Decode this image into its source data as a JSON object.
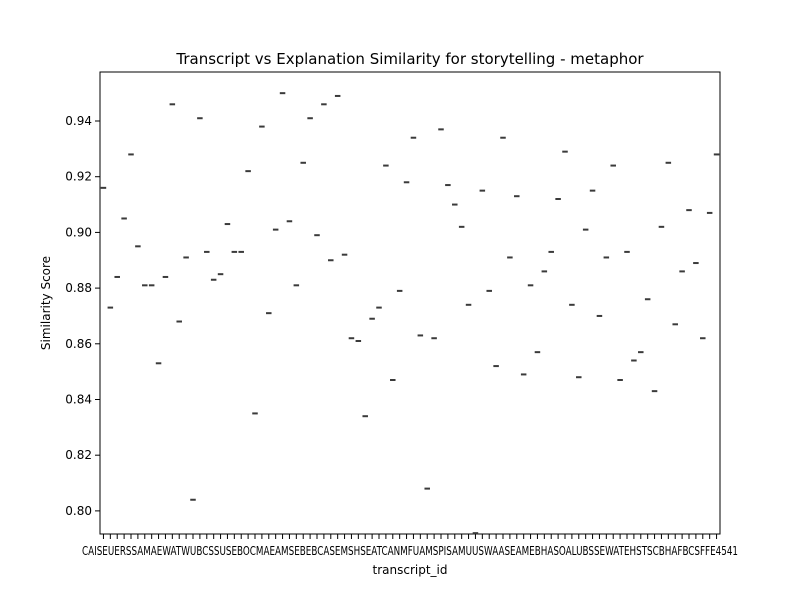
{
  "chart_data": {
    "type": "box",
    "title": "Transcript vs Explanation Similarity for storytelling - metaphor",
    "xlabel": "transcript_id",
    "ylabel": "Similarity Score",
    "ylim": [
      0.7917,
      0.9576
    ],
    "yticks": [
      0.8,
      0.82,
      0.84,
      0.86,
      0.88,
      0.9,
      0.92,
      0.94
    ],
    "xtick_text_visible": "CAISEUERSSAMAEWATWUBCSSUSEBOCMAEAMSEBEBCASEMSHSEATCANMFUAMSPISAMUUSWAASEAMEBHASOALUBSSEWATEHSTSCBHAFBCSFFE4541",
    "grid": false,
    "legend": "none",
    "values": [
      0.916,
      0.873,
      0.884,
      0.905,
      0.928,
      0.895,
      0.881,
      0.881,
      0.853,
      0.884,
      0.946,
      0.868,
      0.891,
      0.804,
      0.941,
      0.893,
      0.883,
      0.885,
      0.903,
      0.893,
      0.893,
      0.922,
      0.835,
      0.938,
      0.871,
      0.901,
      0.95,
      0.904,
      0.881,
      0.925,
      0.941,
      0.899,
      0.946,
      0.89,
      0.949,
      0.892,
      0.862,
      0.861,
      0.834,
      0.869,
      0.873,
      0.924,
      0.847,
      0.879,
      0.918,
      0.934,
      0.863,
      0.808,
      0.862,
      0.937,
      0.917,
      0.91,
      0.902,
      0.874,
      0.792,
      0.915,
      0.879,
      0.852,
      0.934,
      0.891,
      0.913,
      0.849,
      0.881,
      0.857,
      0.886,
      0.893,
      0.912,
      0.929,
      0.874,
      0.848,
      0.901,
      0.915,
      0.87,
      0.891,
      0.924,
      0.847,
      0.893,
      0.854,
      0.857,
      0.876,
      0.843,
      0.902,
      0.925,
      0.867,
      0.886,
      0.908,
      0.889,
      0.862,
      0.907,
      0.928
    ],
    "box_color": "#3a3a3a"
  }
}
